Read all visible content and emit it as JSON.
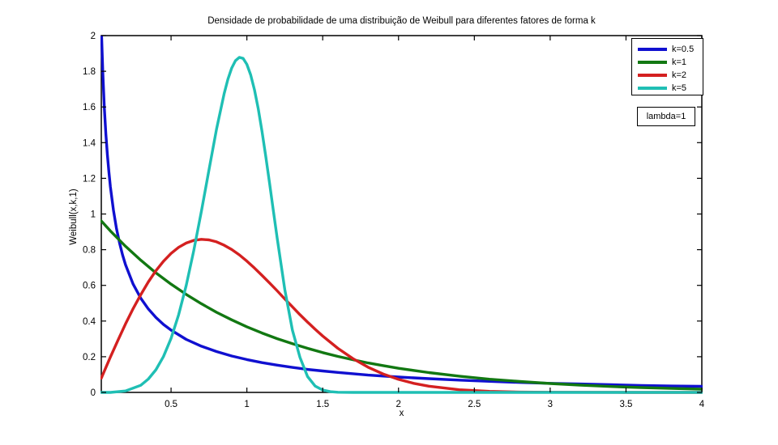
{
  "figure": {
    "background": "#ffffff",
    "frame_color": "#000000"
  },
  "annotation_box": {
    "text": "lambda=1"
  },
  "chart_data": {
    "type": "line",
    "title": "Densidade de probabilidade de uma distribuição de Weibull para diferentes fatores de forma k",
    "xlabel": "x",
    "ylabel": "Weibull(x,k,1)",
    "xlim": [
      0.04,
      4
    ],
    "ylim": [
      0,
      2
    ],
    "grid": false,
    "legend_position": "top-right",
    "annotation": "lambda=1",
    "x_ticks": [
      0.5,
      1,
      1.5,
      2,
      2.5,
      3,
      3.5,
      4
    ],
    "x_tick_labels": [
      "0.5",
      "1",
      "1.5",
      "2",
      "2.5",
      "3",
      "3.5",
      "4"
    ],
    "y_ticks": [
      0,
      0.2,
      0.4,
      0.6,
      0.8,
      1,
      1.2,
      1.4,
      1.6,
      1.8,
      2
    ],
    "y_tick_labels": [
      "0",
      "0.2",
      "0.4",
      "0.6",
      "0.8",
      "1",
      "1.2",
      "1.4",
      "1.6",
      "1.8",
      "2"
    ],
    "series": [
      {
        "name": "k=0.5",
        "color": "#1010d0",
        "x": [
          0.04,
          0.05,
          0.06,
          0.07,
          0.08,
          0.09,
          0.1,
          0.12,
          0.14,
          0.16,
          0.18,
          0.2,
          0.25,
          0.3,
          0.35,
          0.4,
          0.45,
          0.5,
          0.6,
          0.7,
          0.8,
          0.9,
          1.0,
          1.1,
          1.2,
          1.3,
          1.4,
          1.5,
          1.6,
          1.8,
          2.0,
          2.2,
          2.4,
          2.6,
          2.8,
          3.0,
          3.2,
          3.4,
          3.6,
          3.8,
          4.0
        ],
        "y": [
          2.047,
          1.788,
          1.598,
          1.45,
          1.332,
          1.235,
          1.153,
          1.021,
          0.919,
          0.838,
          0.771,
          0.715,
          0.607,
          0.528,
          0.468,
          0.42,
          0.381,
          0.349,
          0.297,
          0.259,
          0.229,
          0.204,
          0.184,
          0.167,
          0.153,
          0.14,
          0.129,
          0.12,
          0.112,
          0.097,
          0.086,
          0.077,
          0.069,
          0.062,
          0.056,
          0.051,
          0.047,
          0.043,
          0.039,
          0.036,
          0.034
        ]
      },
      {
        "name": "k=1",
        "color": "#127812",
        "x": [
          0.04,
          0.1,
          0.2,
          0.3,
          0.4,
          0.5,
          0.6,
          0.7,
          0.8,
          0.9,
          1.0,
          1.1,
          1.2,
          1.3,
          1.4,
          1.5,
          1.6,
          1.7,
          1.8,
          1.9,
          2.0,
          2.2,
          2.4,
          2.6,
          2.8,
          3.0,
          3.2,
          3.4,
          3.6,
          3.8,
          4.0
        ],
        "y": [
          0.961,
          0.905,
          0.819,
          0.741,
          0.67,
          0.607,
          0.549,
          0.497,
          0.449,
          0.407,
          0.368,
          0.333,
          0.301,
          0.273,
          0.247,
          0.223,
          0.202,
          0.183,
          0.165,
          0.15,
          0.135,
          0.111,
          0.091,
          0.074,
          0.061,
          0.05,
          0.041,
          0.033,
          0.027,
          0.022,
          0.018
        ]
      },
      {
        "name": "k=2",
        "color": "#d42020",
        "x": [
          0.04,
          0.1,
          0.15,
          0.2,
          0.25,
          0.3,
          0.35,
          0.4,
          0.45,
          0.5,
          0.55,
          0.6,
          0.65,
          0.7,
          0.75,
          0.8,
          0.85,
          0.9,
          0.95,
          1.0,
          1.05,
          1.1,
          1.15,
          1.2,
          1.25,
          1.3,
          1.35,
          1.4,
          1.45,
          1.5,
          1.6,
          1.7,
          1.8,
          1.9,
          2.0,
          2.1,
          2.2,
          2.4,
          2.6,
          2.8,
          3.0,
          3.5,
          4.0
        ],
        "y": [
          0.08,
          0.198,
          0.293,
          0.384,
          0.47,
          0.548,
          0.619,
          0.682,
          0.735,
          0.779,
          0.813,
          0.837,
          0.852,
          0.858,
          0.855,
          0.844,
          0.825,
          0.801,
          0.771,
          0.736,
          0.697,
          0.656,
          0.613,
          0.569,
          0.524,
          0.48,
          0.436,
          0.394,
          0.354,
          0.316,
          0.247,
          0.189,
          0.141,
          0.103,
          0.073,
          0.051,
          0.035,
          0.015,
          0.006,
          0.002,
          0.001,
          0.0,
          0.0
        ]
      },
      {
        "name": "k=5",
        "color": "#1fbfb4",
        "x": [
          0.04,
          0.1,
          0.2,
          0.3,
          0.35,
          0.4,
          0.45,
          0.5,
          0.55,
          0.6,
          0.65,
          0.7,
          0.75,
          0.8,
          0.85,
          0.875,
          0.9,
          0.925,
          0.95,
          0.975,
          1.0,
          1.025,
          1.05,
          1.075,
          1.1,
          1.125,
          1.15,
          1.175,
          1.2,
          1.25,
          1.3,
          1.35,
          1.4,
          1.45,
          1.5,
          1.55,
          1.6,
          1.7,
          1.8,
          2.0,
          2.5,
          3.0,
          3.5,
          4.0
        ],
        "y": [
          0.0,
          0.0,
          0.008,
          0.04,
          0.075,
          0.127,
          0.201,
          0.303,
          0.435,
          0.6,
          0.795,
          1.015,
          1.248,
          1.476,
          1.675,
          1.755,
          1.818,
          1.86,
          1.878,
          1.872,
          1.839,
          1.78,
          1.696,
          1.589,
          1.463,
          1.321,
          1.17,
          1.015,
          0.862,
          0.577,
          0.349,
          0.197,
          0.089,
          0.036,
          0.013,
          0.004,
          0.001,
          0.0,
          0.0,
          0.0,
          0.0,
          0.0,
          0.0,
          0.0
        ]
      }
    ]
  }
}
